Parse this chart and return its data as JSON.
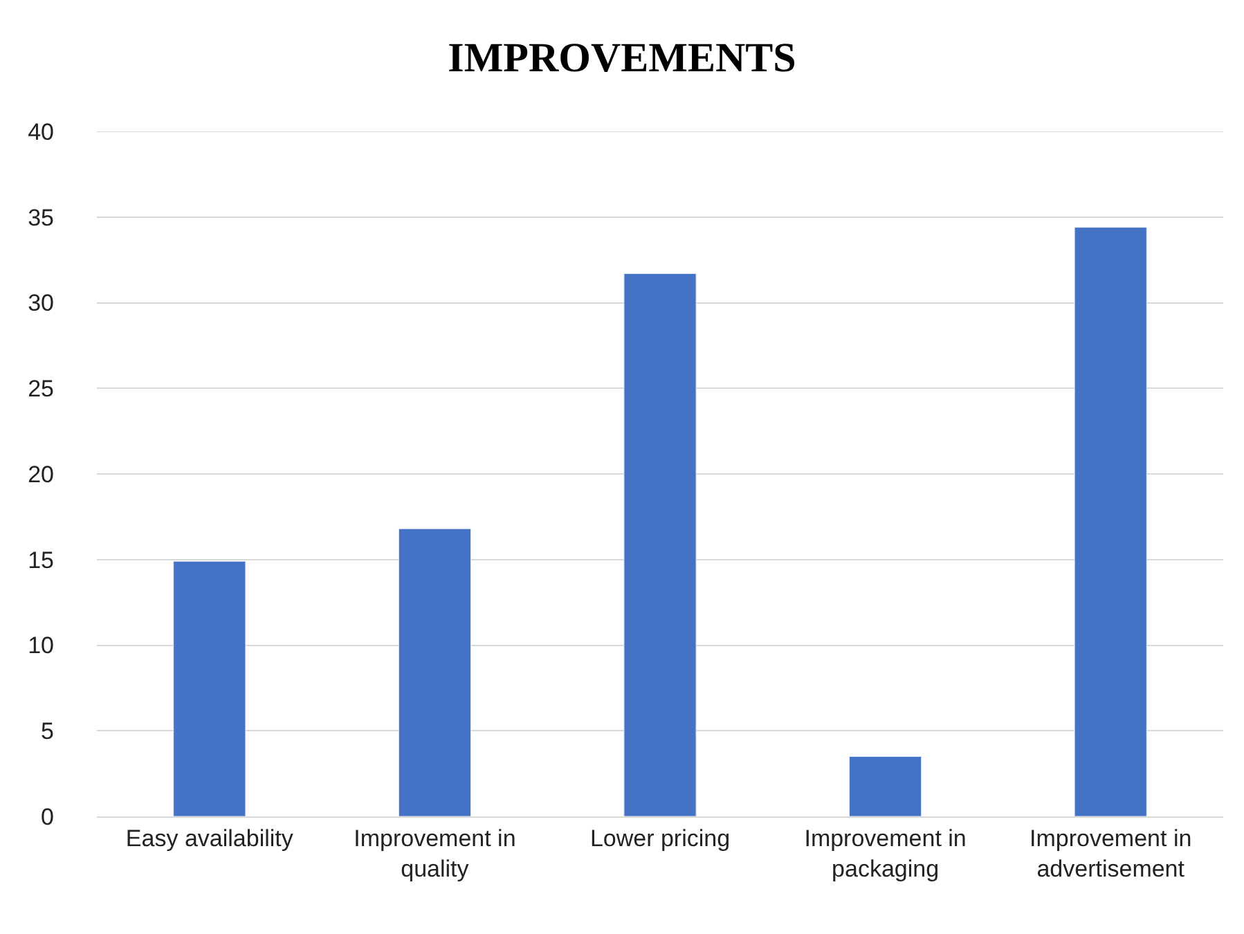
{
  "chart_data": {
    "type": "bar",
    "title": "IMPROVEMENTS",
    "categories": [
      "Easy availability",
      "Improvement in quality",
      "Lower pricing",
      "Improvement in packaging",
      "Improvement in advertisement"
    ],
    "values": [
      14.9,
      16.8,
      31.7,
      3.5,
      34.4
    ],
    "color": "#4472c4",
    "ylim": [
      0,
      40
    ],
    "yticks": [
      0,
      5,
      10,
      15,
      20,
      25,
      30,
      35,
      40
    ],
    "grid": "y"
  }
}
